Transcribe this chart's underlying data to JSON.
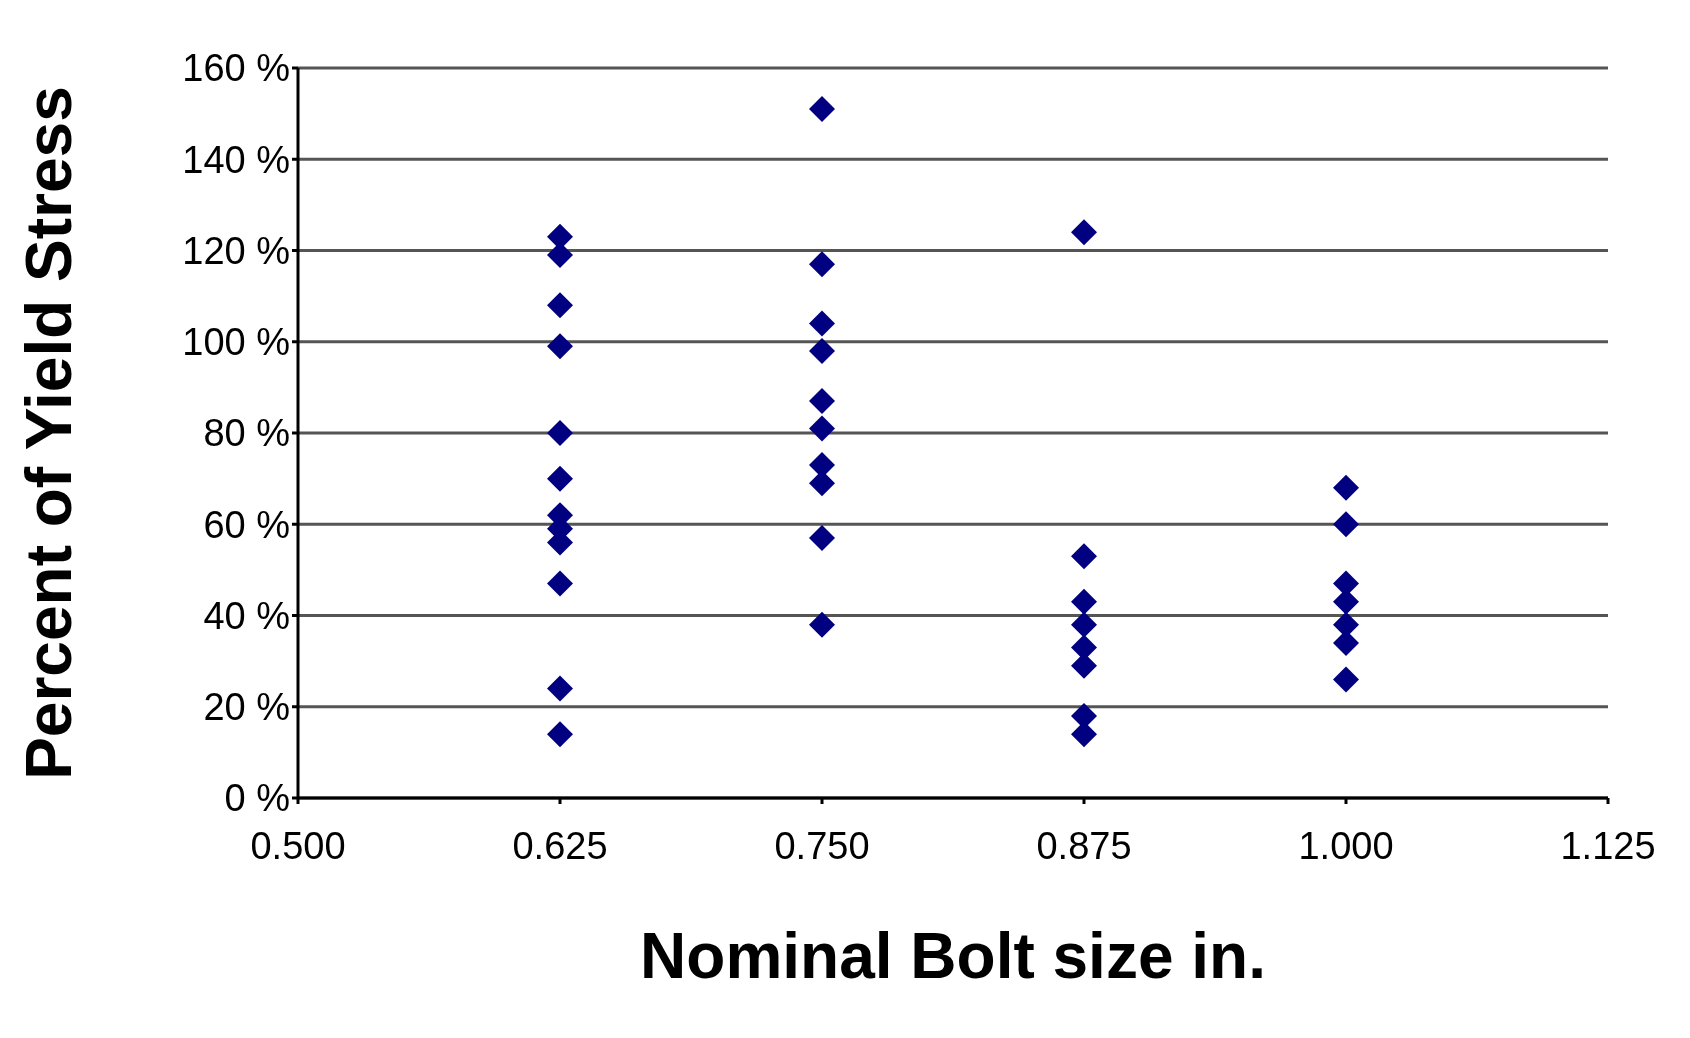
{
  "chart_data": {
    "type": "scatter",
    "xlabel": "Nominal Bolt size in.",
    "ylabel": "Percent of Yield Stress",
    "x": [
      0.625,
      0.625,
      0.625,
      0.625,
      0.625,
      0.625,
      0.625,
      0.625,
      0.625,
      0.625,
      0.625,
      0.625,
      0.75,
      0.75,
      0.75,
      0.75,
      0.75,
      0.75,
      0.75,
      0.75,
      0.75,
      0.75,
      0.875,
      0.875,
      0.875,
      0.875,
      0.875,
      0.875,
      0.875,
      0.875,
      1.0,
      1.0,
      1.0,
      1.0,
      1.0,
      1.0,
      1.0
    ],
    "series": [
      {
        "color": "#000080",
        "values": [
          123,
          119,
          108,
          99,
          80,
          70,
          62,
          59,
          56,
          47,
          24,
          14,
          151,
          117,
          104,
          98,
          87,
          81,
          73,
          69,
          57,
          38,
          124,
          53,
          43,
          38,
          33,
          29,
          18,
          14,
          68,
          60,
          47,
          43,
          38,
          34,
          26
        ]
      }
    ],
    "marker": "diamond",
    "grid": "y",
    "xlim": [
      0.5,
      1.125
    ],
    "xticks": [
      {
        "value": 0.5,
        "label": "0.500"
      },
      {
        "value": 0.625,
        "label": "0.625"
      },
      {
        "value": 0.75,
        "label": "0.750"
      },
      {
        "value": 0.875,
        "label": "0.875"
      },
      {
        "value": 1.0,
        "label": "1.000"
      },
      {
        "value": 1.125,
        "label": "1.125"
      }
    ],
    "ylim": [
      0,
      160
    ],
    "yticks": [
      {
        "value": 0,
        "label": "0 %"
      },
      {
        "value": 20,
        "label": "20 %"
      },
      {
        "value": 40,
        "label": "40 %"
      },
      {
        "value": 60,
        "label": "60 %"
      },
      {
        "value": 80,
        "label": "80 %"
      },
      {
        "value": 100,
        "label": "100 %"
      },
      {
        "value": 120,
        "label": "120 %"
      },
      {
        "value": 140,
        "label": "140 %"
      },
      {
        "value": 160,
        "label": "160 %"
      }
    ]
  }
}
